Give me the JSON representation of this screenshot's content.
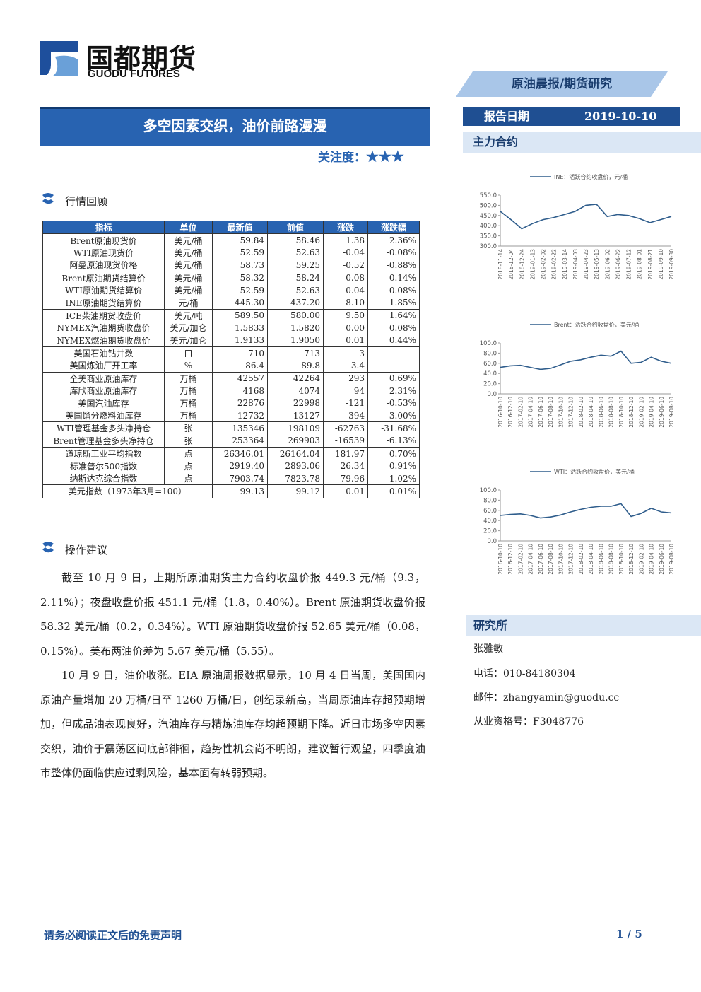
{
  "header": {
    "logo_cn": "国都期货",
    "logo_en": "GUODU FUTURES",
    "report_type": "原油晨报/期货研究"
  },
  "title": "多空因素交织，油价前路漫漫",
  "attention": {
    "label": "关注度：",
    "stars": "★★★"
  },
  "report_date": {
    "label": "报告日期",
    "value": "2019-10-10"
  },
  "main_contract": "主力合约",
  "section_review": "行情回顾",
  "table": {
    "header": [
      "指标",
      "单位",
      "最新值",
      "前值",
      "涨跌",
      "涨跌幅"
    ],
    "groups": [
      [
        {
          "name": "Brent原油现货价",
          "unit": "美元/桶",
          "latest": "59.84",
          "prev": "58.46",
          "change": "1.38",
          "pct": "2.36%"
        },
        {
          "name": "WTI原油现货价",
          "unit": "美元/桶",
          "latest": "52.59",
          "prev": "52.63",
          "change": "-0.04",
          "pct": "-0.08%"
        },
        {
          "name": "阿曼原油现货价格",
          "unit": "美元/桶",
          "latest": "58.73",
          "prev": "59.25",
          "change": "-0.52",
          "pct": "-0.88%"
        }
      ],
      [
        {
          "name": "Brent原油期货结算价",
          "unit": "美元/桶",
          "latest": "58.32",
          "prev": "58.24",
          "change": "0.08",
          "pct": "0.14%"
        },
        {
          "name": "WTI原油期货结算价",
          "unit": "美元/桶",
          "latest": "52.59",
          "prev": "52.63",
          "change": "-0.04",
          "pct": "-0.08%"
        },
        {
          "name": "INE原油期货结算价",
          "unit": "元/桶",
          "latest": "445.30",
          "prev": "437.20",
          "change": "8.10",
          "pct": "1.85%"
        }
      ],
      [
        {
          "name": "ICE柴油期货收盘价",
          "unit": "美元/吨",
          "latest": "589.50",
          "prev": "580.00",
          "change": "9.50",
          "pct": "1.64%"
        },
        {
          "name": "NYMEX汽油期货收盘价",
          "unit": "美元/加仑",
          "latest": "1.5833",
          "prev": "1.5820",
          "change": "0.00",
          "pct": "0.08%"
        },
        {
          "name": "NYMEX燃油期货收盘价",
          "unit": "美元/加仑",
          "latest": "1.9133",
          "prev": "1.9050",
          "change": "0.01",
          "pct": "0.44%"
        }
      ],
      [
        {
          "name": "美国石油钻井数",
          "unit": "口",
          "latest": "710",
          "prev": "713",
          "change": "-3"
        },
        {
          "name": "美国炼油厂开工率",
          "unit": "%",
          "latest": "86.4",
          "prev": "89.8",
          "change": "-3.4"
        }
      ],
      [
        {
          "name": "全美商业原油库存",
          "unit": "万桶",
          "latest": "42557",
          "prev": "42264",
          "change": "293",
          "pct": "0.69%"
        },
        {
          "name": "库欣商业原油库存",
          "unit": "万桶",
          "latest": "4168",
          "prev": "4074",
          "change": "94",
          "pct": "2.31%"
        },
        {
          "name": "美国汽油库存",
          "unit": "万桶",
          "latest": "22876",
          "prev": "22998",
          "change": "-121",
          "pct": "-0.53%"
        },
        {
          "name": "美国馏分燃料油库存",
          "unit": "万桶",
          "latest": "12732",
          "prev": "13127",
          "change": "-394",
          "pct": "-3.00%"
        }
      ],
      [
        {
          "name": "WTI管理基金多头净持仓",
          "unit": "张",
          "latest": "135346",
          "prev": "198109",
          "change": "-62763",
          "pct": "-31.68%"
        },
        {
          "name": "Brent管理基金多头净持仓",
          "unit": "张",
          "latest": "253364",
          "prev": "269903",
          "change": "-16539",
          "pct": "-6.13%"
        }
      ],
      [
        {
          "name": "道琼斯工业平均指数",
          "unit": "点",
          "latest": "26346.01",
          "prev": "26164.04",
          "change": "181.97",
          "pct": "0.70%"
        },
        {
          "name": "标准普尔500指数",
          "unit": "点",
          "latest": "2919.40",
          "prev": "2893.06",
          "change": "26.34",
          "pct": "0.91%"
        },
        {
          "name": "纳斯达克综合指数",
          "unit": "点",
          "latest": "7903.74",
          "prev": "7823.78",
          "change": "79.96",
          "pct": "1.02%"
        }
      ],
      [
        {
          "name": "美元指数（1973年3月=100）",
          "latest": "99.13",
          "prev": "99.12",
          "change": "0.01",
          "pct": "0.01%"
        }
      ]
    ]
  },
  "section_advice": "操作建议",
  "paragraphs": [
    "截至 10 月 9 日，上期所原油期货主力合约收盘价报 449.3 元/桶（9.3，2.11%）；夜盘收盘价报 451.1 元/桶（1.8，0.40%）。Brent 原油期货收盘价报 58.32 美元/桶（0.2，0.34%）。WTI 原油期货收盘价报 52.65 美元/桶（0.08，0.15%）。美布两油价差为 5.67 美元/桶（5.55）。",
    "10 月 9 日，油价收涨。EIA 原油周报数据显示，10 月 4 日当周，美国国内原油产量增加 20 万桶/日至 1260 万桶/日，创纪录新高，当周原油库存超预期增加，但成品油表现良好，汽油库存与精炼油库存均超预期下降。近日市场多空因素交织，油价于震荡区间底部徘徊，趋势性机会尚不明朗，建议暂行观望，四季度油市整体仍面临供应过剩风险，基本面有转弱预期。"
  ],
  "chart_data": [
    {
      "type": "line",
      "categories": [
        "2018-11-14",
        "2018-12-04",
        "2018-12-24",
        "2019-01-13",
        "2019-02-02",
        "2019-02-22",
        "2019-03-14",
        "2019-04-03",
        "2019-04-23",
        "2019-05-13",
        "2019-06-02",
        "2019-06-22",
        "2019-07-12",
        "2019-08-01",
        "2019-08-21",
        "2019-09-10",
        "2019-09-30"
      ],
      "series": [
        {
          "name": "INE：活跃合约收盘价，元/桶",
          "color": "#2f5d8c",
          "values": [
            470,
            430,
            385,
            410,
            430,
            440,
            455,
            470,
            500,
            505,
            445,
            455,
            450,
            435,
            415,
            430,
            445
          ]
        }
      ],
      "ylim": [
        300,
        550
      ],
      "yticks": [
        {
          "value": 300,
          "label": "300.0"
        },
        {
          "value": 350,
          "label": "350.0"
        },
        {
          "value": 400,
          "label": "400.0"
        },
        {
          "value": 450,
          "label": "450.0"
        },
        {
          "value": 500,
          "label": "500.0"
        },
        {
          "value": 550,
          "label": "550.0"
        }
      ]
    },
    {
      "type": "line",
      "categories": [
        "2016-10-10",
        "2016-12-10",
        "2017-02-10",
        "2017-04-10",
        "2017-06-10",
        "2017-08-10",
        "2017-10-10",
        "2017-12-10",
        "2018-02-10",
        "2018-04-10",
        "2018-06-10",
        "2018-08-10",
        "2018-10-10",
        "2018-12-10",
        "2019-02-10",
        "2019-04-10",
        "2019-06-10",
        "2019-08-10"
      ],
      "series": [
        {
          "name": "Brent：活跃合约收盘价，美元/桶",
          "color": "#2f5d8c",
          "values": [
            52,
            55,
            56,
            52,
            48,
            50,
            57,
            64,
            67,
            72,
            76,
            74,
            84,
            60,
            62,
            72,
            64,
            60
          ]
        }
      ],
      "ylim": [
        0,
        100
      ],
      "yticks": [
        {
          "value": 0,
          "label": "0.0"
        },
        {
          "value": 20,
          "label": "20.0"
        },
        {
          "value": 40,
          "label": "40.0"
        },
        {
          "value": 60,
          "label": "60.0"
        },
        {
          "value": 80,
          "label": "80.0"
        },
        {
          "value": 100,
          "label": "100.0"
        }
      ]
    },
    {
      "type": "line",
      "categories": [
        "2016-10-10",
        "2016-12-10",
        "2017-02-10",
        "2017-04-10",
        "2017-06-10",
        "2017-08-10",
        "2017-10-10",
        "2017-12-10",
        "2018-02-10",
        "2018-04-10",
        "2018-06-10",
        "2018-08-10",
        "2018-10-10",
        "2018-12-10",
        "2019-02-10",
        "2019-04-10",
        "2019-06-10",
        "2019-08-10"
      ],
      "series": [
        {
          "name": "WTI：活跃合约收盘价，美元/桶",
          "color": "#2f5d8c",
          "values": [
            50,
            52,
            53,
            50,
            45,
            47,
            51,
            57,
            62,
            66,
            68,
            68,
            73,
            48,
            54,
            64,
            57,
            55
          ]
        }
      ],
      "ylim": [
        0,
        100
      ],
      "yticks": [
        {
          "value": 0,
          "label": "0.0"
        },
        {
          "value": 20,
          "label": "20.0"
        },
        {
          "value": 40,
          "label": "40.0"
        },
        {
          "value": 60,
          "label": "60.0"
        },
        {
          "value": 80,
          "label": "80.0"
        },
        {
          "value": 100,
          "label": "100.0"
        }
      ]
    }
  ],
  "research": {
    "title": "研究所",
    "name": "张雅敏",
    "phone": "电话：010-84180304",
    "email": "邮件：zhangyamin@guodu.cc",
    "license": "从业资格号：F3048776"
  },
  "footer": {
    "disclaimer": "请务必阅读正文后的免责声明",
    "page": "1 / 5"
  }
}
